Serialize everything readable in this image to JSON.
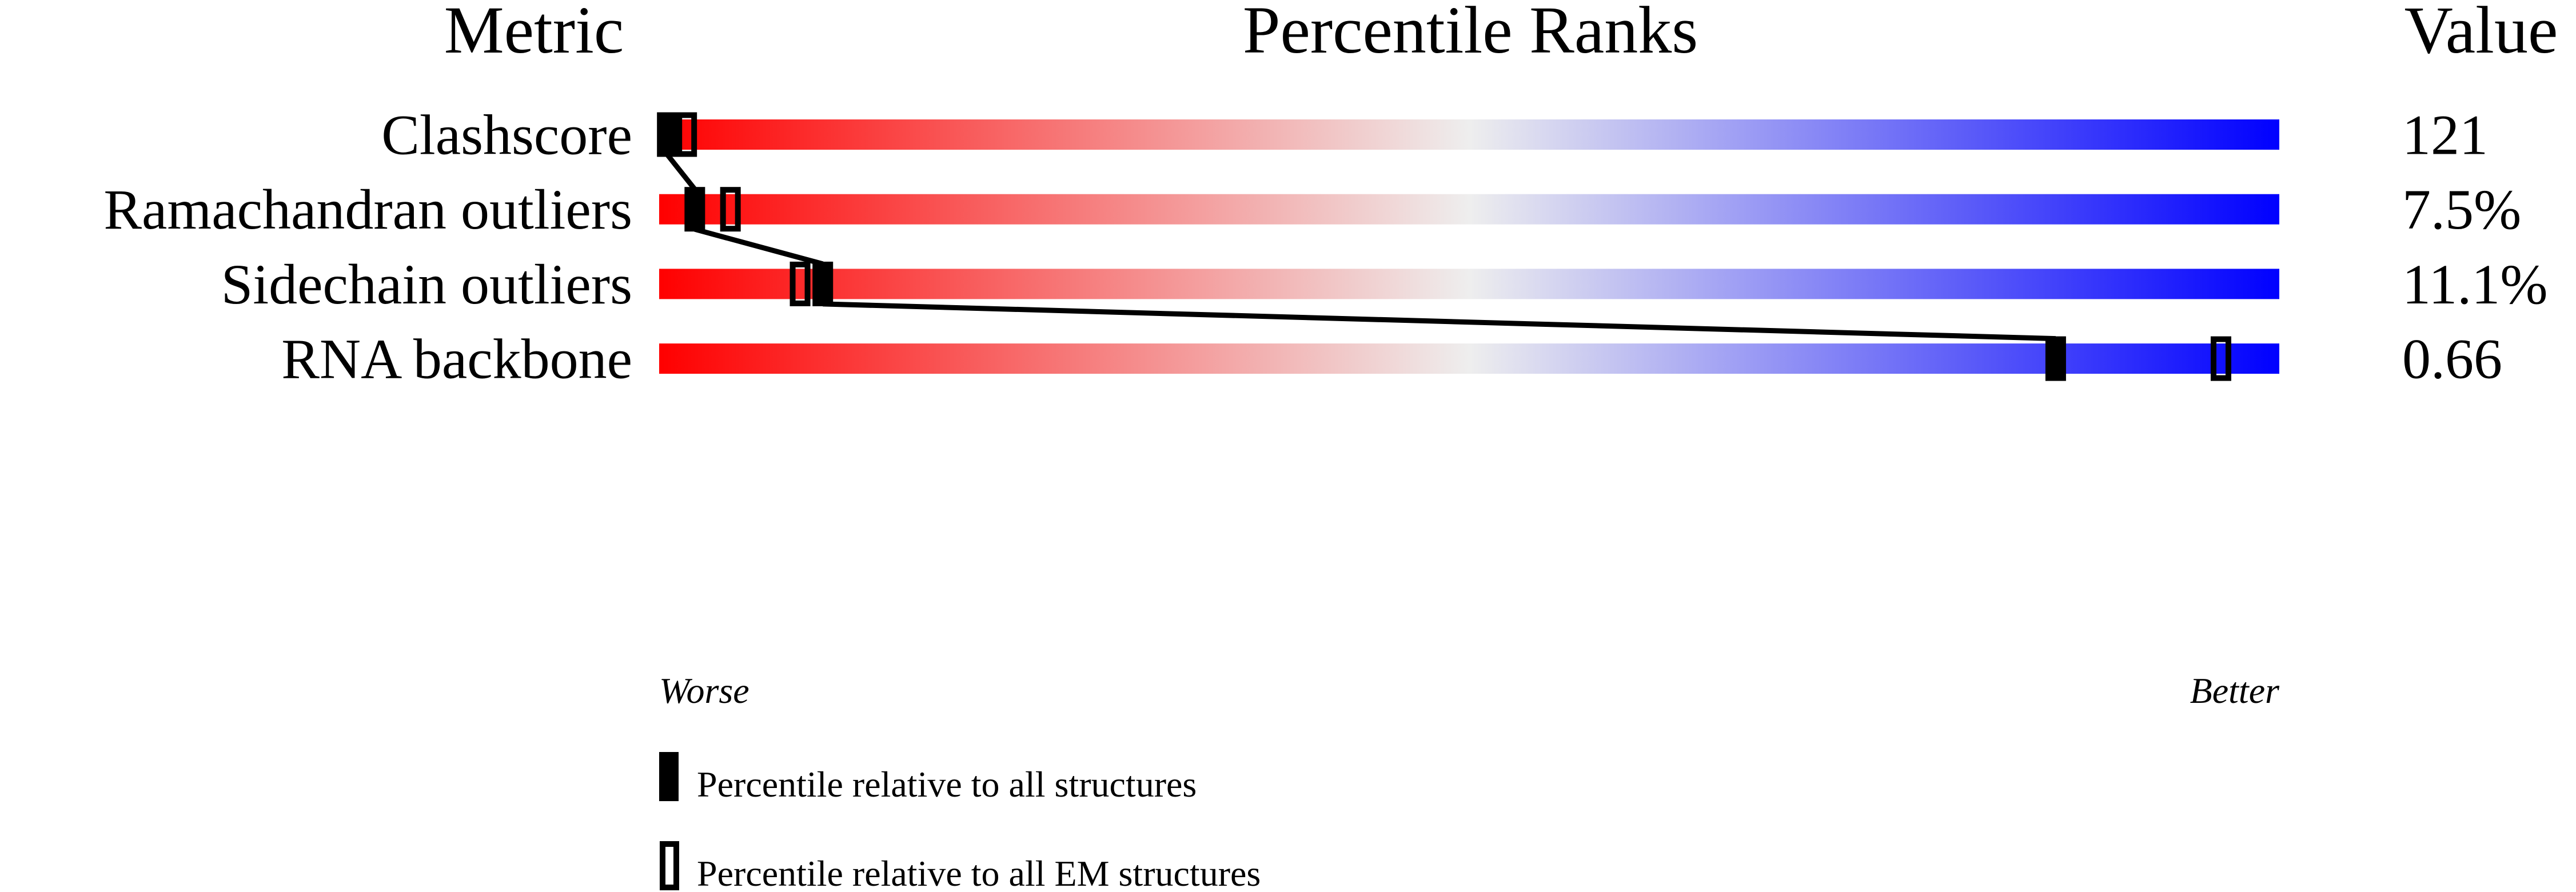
{
  "chart_data": {
    "type": "percentile-bar",
    "headers": {
      "metric": "Metric",
      "ranks": "Percentile Ranks",
      "value": "Value"
    },
    "xlim": [
      0,
      100
    ],
    "colors": {
      "worse": "#ff0000",
      "middle": "#eeeeee",
      "better": "#0000ff",
      "marker": "#000000"
    },
    "rows": [
      {
        "metric": "Clashscore",
        "value": "121",
        "percentile_all": 0.5,
        "percentile_em": 1.7
      },
      {
        "metric": "Ramachandran outliers",
        "value": "7.5%",
        "percentile_all": 2.2,
        "percentile_em": 4.4
      },
      {
        "metric": "Sidechain outliers",
        "value": "11.1%",
        "percentile_all": 10.1,
        "percentile_em": 8.7
      },
      {
        "metric": "RNA backbone",
        "value": "0.66",
        "percentile_all": 86.2,
        "percentile_em": 96.4
      }
    ],
    "axis_labels": {
      "left": "Worse",
      "right": "Better"
    },
    "legend": [
      {
        "style": "filled",
        "label": "Percentile relative to all structures"
      },
      {
        "style": "open",
        "label": "Percentile relative to all EM structures"
      }
    ]
  }
}
